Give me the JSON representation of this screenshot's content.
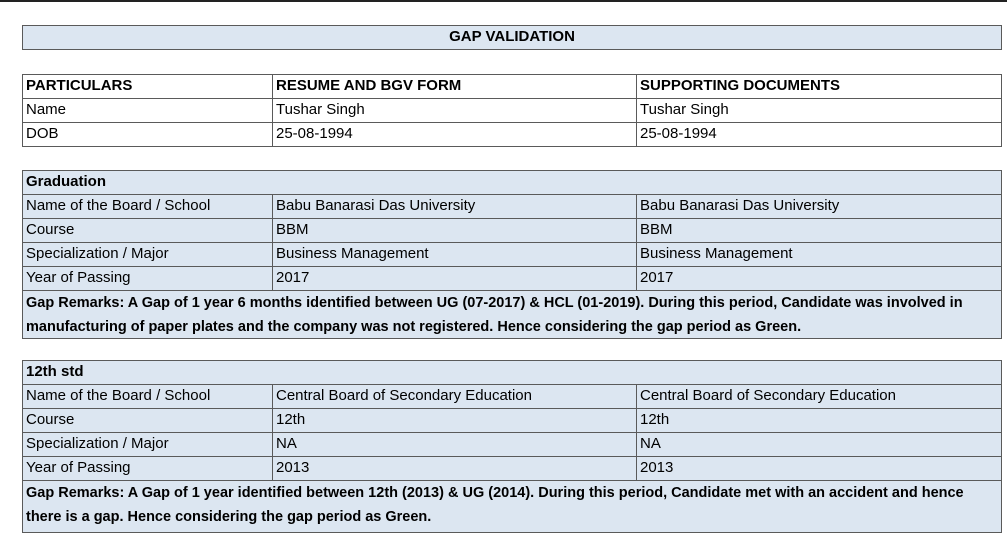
{
  "title": "GAP VALIDATION",
  "table": {
    "header": [
      "PARTICULARS",
      "RESUME AND BGV FORM",
      "SUPPORTING DOCUMENTS"
    ],
    "rows": [
      [
        "Name",
        "Tushar Singh",
        "Tushar Singh"
      ],
      [
        "DOB",
        "25-08-1994",
        "25-08-1994"
      ]
    ]
  },
  "sections": [
    {
      "heading": "Graduation",
      "rows": [
        [
          "Name of the Board / School",
          "Babu Banarasi Das University",
          "Babu Banarasi Das University"
        ],
        [
          "Course",
          "BBM",
          "BBM"
        ],
        [
          "Specialization / Major",
          "Business Management",
          "Business Management"
        ],
        [
          "Year of Passing",
          "2017",
          "2017"
        ]
      ],
      "remarks": "Gap Remarks: A Gap of 1 year 6 months identified between UG (07-2017) & HCL (01-2019). During this period, Candidate was involved in manufacturing of paper plates and the company was not registered. Hence considering the gap period as Green."
    },
    {
      "heading": "12th std",
      "rows": [
        [
          "Name of the Board / School",
          "Central Board of Secondary Education",
          "Central Board of Secondary Education"
        ],
        [
          "Course",
          "12th",
          "12th"
        ],
        [
          "Specialization / Major",
          "NA",
          "NA"
        ],
        [
          "Year of Passing",
          "2013",
          "2013"
        ]
      ],
      "remarks": "Gap Remarks: A Gap of 1 year identified between 12th (2013) & UG (2014). During this period, Candidate met with an accident and hence there is a gap. Hence considering the gap period as Green."
    }
  ]
}
